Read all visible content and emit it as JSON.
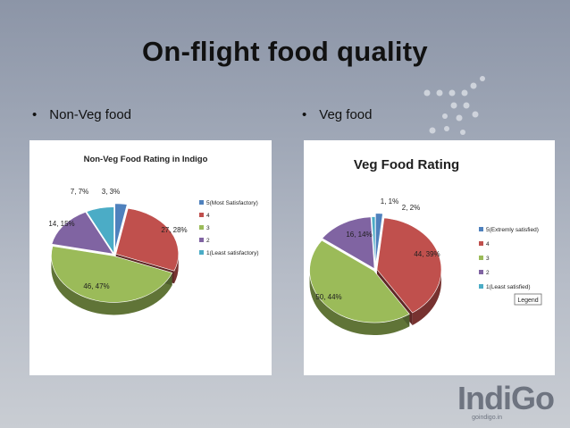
{
  "slide": {
    "title": "On-flight food quality",
    "bullets": [
      "Non-Veg food",
      "Veg food"
    ],
    "brand": {
      "name": "IndiGo",
      "url": "goindigo.in"
    },
    "background_colors": [
      "#8c95a7",
      "#c9cdd3"
    ]
  },
  "chart_data": [
    {
      "type": "pie",
      "title": "Non-Veg Food Rating in Indigo",
      "categories": [
        "5(Most Satisfactory)",
        "4",
        "3",
        "2",
        "1(Least satisfactory)"
      ],
      "values": [
        3,
        27,
        46,
        14,
        7
      ],
      "percents": [
        3,
        28,
        47,
        15,
        7
      ],
      "data_labels": [
        "3, 3%",
        "27, 28%",
        "46, 47%",
        "14, 15%",
        "7, 7%"
      ],
      "colors": [
        "#4f81bd",
        "#c0504d",
        "#9bbb59",
        "#8064a2",
        "#4bacc6"
      ],
      "legend_position": "right",
      "three_d": true
    },
    {
      "type": "pie",
      "title": "Veg Food Rating",
      "categories": [
        "5(Extremly satisfied)",
        "4",
        "3",
        "2",
        "1(Least satisfied)"
      ],
      "values": [
        2,
        44,
        50,
        16,
        1
      ],
      "percents": [
        2,
        39,
        44,
        14,
        1
      ],
      "data_labels": [
        "2, 2%",
        "44, 39%",
        "50, 44%",
        "16, 14%",
        "1, 1%"
      ],
      "colors": [
        "#4f81bd",
        "#c0504d",
        "#9bbb59",
        "#8064a2",
        "#4bacc6"
      ],
      "legend_position": "right",
      "legend_tooltip": "Legend",
      "three_d": true
    }
  ]
}
